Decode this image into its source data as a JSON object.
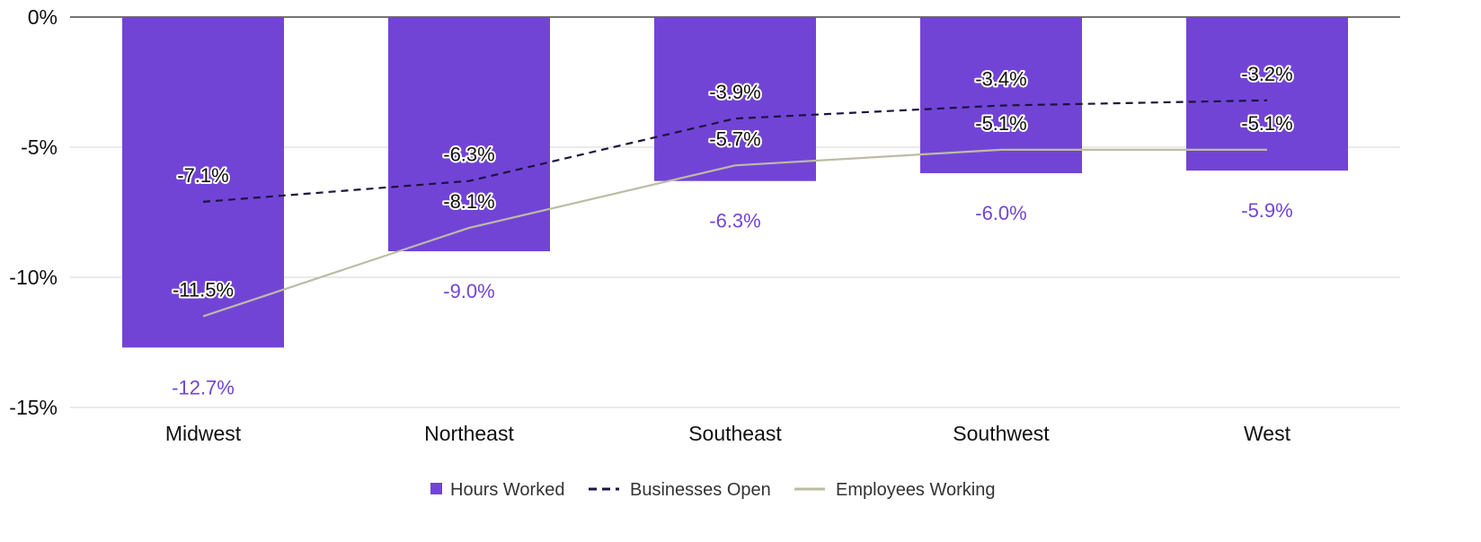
{
  "chart_data": {
    "type": "bar",
    "categories": [
      "Midwest",
      "Northeast",
      "Southeast",
      "Southwest",
      "West"
    ],
    "series": [
      {
        "name": "Hours Worked",
        "kind": "bar",
        "color": "#7244d6",
        "label_color": "#7244d6",
        "values": [
          -12.7,
          -9.0,
          -6.3,
          -6.0,
          -5.9
        ],
        "labels": [
          "-12.7%",
          "-9.0%",
          "-6.3%",
          "-6.0%",
          "-5.9%"
        ]
      },
      {
        "name": "Businesses Open",
        "kind": "line",
        "style": "dashed",
        "color": "#1a1440",
        "label_color": "#111111",
        "values": [
          -7.1,
          -6.3,
          -3.9,
          -3.4,
          -3.2
        ],
        "labels": [
          "-7.1%",
          "-6.3%",
          "-3.9%",
          "-3.4%",
          "-3.2%"
        ]
      },
      {
        "name": "Employees Working",
        "kind": "line",
        "style": "solid",
        "color": "#bcbca4",
        "label_color": "#111111",
        "values": [
          -11.5,
          -8.1,
          -5.7,
          -5.1,
          -5.1
        ],
        "labels": [
          "-11.5%",
          "-8.1%",
          "-5.7%",
          "-5.1%",
          "-5.1%"
        ]
      }
    ],
    "y_ticks": [
      0,
      -5,
      -10,
      -15
    ],
    "y_tick_labels": [
      "0%",
      "-5%",
      "-10%",
      "-15%"
    ],
    "ylim": [
      -15,
      0
    ],
    "grid": true,
    "legend_position": "bottom-center",
    "title": "",
    "xlabel": "",
    "ylabel": ""
  }
}
